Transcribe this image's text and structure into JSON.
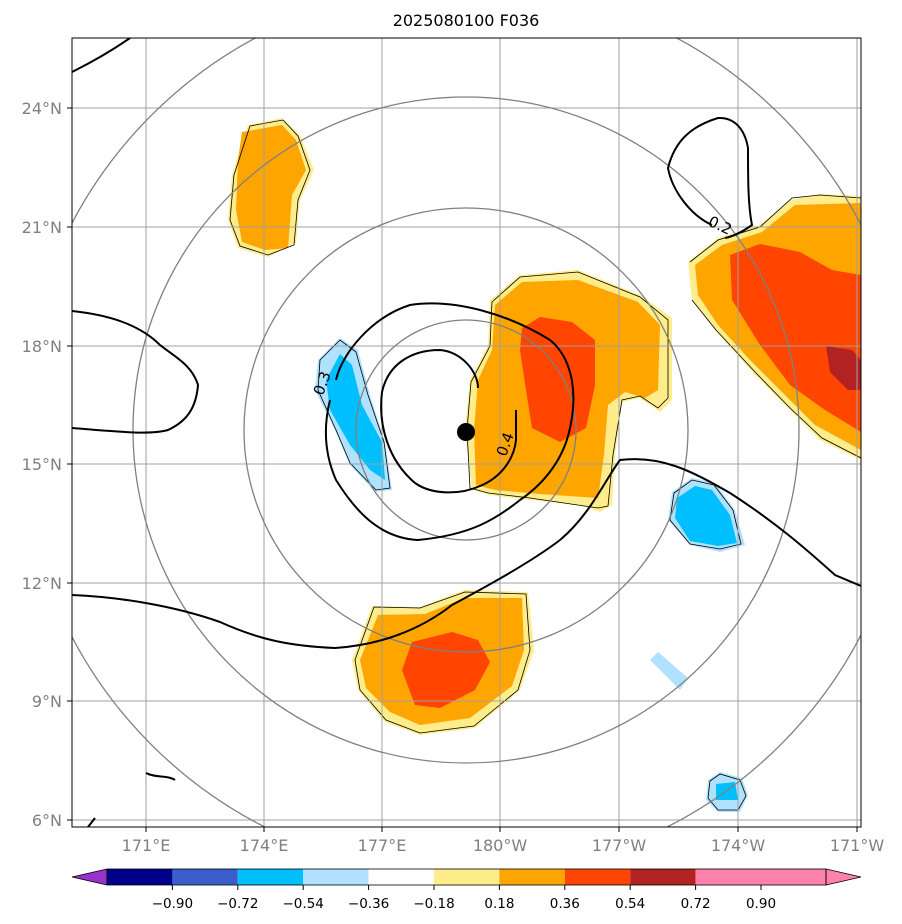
{
  "title": "2025080100 F036",
  "axes": {
    "x_ticks": [
      "171°E",
      "174°E",
      "177°E",
      "180°W",
      "177°W",
      "174°W",
      "171°W"
    ],
    "y_ticks": [
      "24°N",
      "21°N",
      "18°N",
      "15°N",
      "12°N",
      "9°N",
      "6°N"
    ]
  },
  "storm_center": {
    "lat": 15.8,
    "lon": 179.4
  },
  "contour_labels": [
    "0.3",
    "0.4",
    "0.2"
  ],
  "colorbar": {
    "labels": [
      "-0.90",
      "-0.72",
      "-0.54",
      "-0.36",
      "-0.18",
      "0.18",
      "0.36",
      "0.54",
      "0.72",
      "0.90"
    ],
    "colors": [
      "#9932cc",
      "#00008b",
      "#3a5fcd",
      "#00bfff",
      "#b0e2ff",
      "#ffffff",
      "#ffec8b",
      "#ffa500",
      "#ff4500",
      "#b22222",
      "#ff82ab"
    ]
  }
}
